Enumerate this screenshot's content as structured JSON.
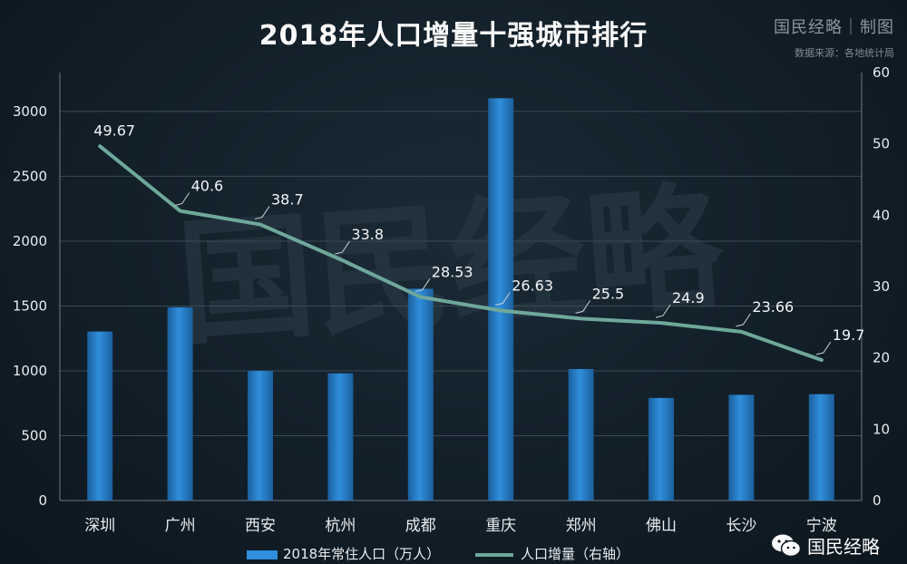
{
  "header": {
    "brand": "国民经略｜制图",
    "source": "数据来源：各地统计局",
    "watermark": "国民经略"
  },
  "wechat": {
    "label": "国民经略",
    "icon": "wechat-icon"
  },
  "colors": {
    "bar": "#2f8fdc",
    "bar_dark": "#1c5f9c",
    "line": "#6fa89a",
    "grid": "#3a4a55",
    "axis": "#6a7a85"
  },
  "chart_data": {
    "type": "bar",
    "title": "2018年人口增量十强城市排行",
    "categories": [
      "深圳",
      "广州",
      "西安",
      "杭州",
      "成都",
      "重庆",
      "郑州",
      "佛山",
      "长沙",
      "宁波"
    ],
    "series": [
      {
        "name": "2018年常住人口（万人）",
        "type": "bar",
        "axis": "left",
        "values": [
          1303,
          1490,
          1000,
          981,
          1633,
          3102,
          1014,
          791,
          815,
          820
        ]
      },
      {
        "name": "人口增量（右轴）",
        "type": "line",
        "axis": "right",
        "values": [
          49.67,
          40.6,
          38.7,
          33.8,
          28.53,
          26.63,
          25.5,
          24.9,
          23.66,
          19.7
        ],
        "labels": [
          "49.67",
          "40.6",
          "38.7",
          "33.8",
          "28.53",
          "26.63",
          "25.5",
          "24.9",
          "23.66",
          "19.7"
        ]
      }
    ],
    "y_left": {
      "ylim": [
        0,
        3300
      ],
      "ticks": [
        0,
        500,
        1000,
        1500,
        2000,
        2500,
        3000
      ]
    },
    "y_right": {
      "ylim": [
        0,
        60
      ],
      "ticks": [
        0,
        10,
        20,
        30,
        40,
        50,
        60
      ]
    },
    "grid": true,
    "legend": "bottom"
  }
}
